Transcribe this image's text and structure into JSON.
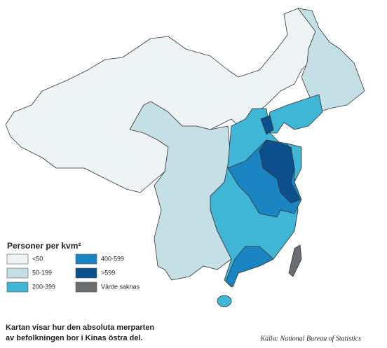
{
  "legend": {
    "title": "Personer per kvm²",
    "items": [
      {
        "label": "<50",
        "color": "#eef3f6"
      },
      {
        "label": "50-199",
        "color": "#c5dfe6"
      },
      {
        "label": "200-399",
        "color": "#3fb6d6"
      },
      {
        "label": "400-599",
        "color": "#1a85c2"
      },
      {
        "label": ">599",
        "color": "#0b4f8c"
      },
      {
        "label": "Värde saknas",
        "color": "#6b6d70"
      }
    ]
  },
  "caption": {
    "lines": [
      "Kartan visar hur den absoluta merparten",
      "av befolkningen bor i Kinas östra del."
    ]
  },
  "source": "Källa: National Bureau of Statistics"
}
